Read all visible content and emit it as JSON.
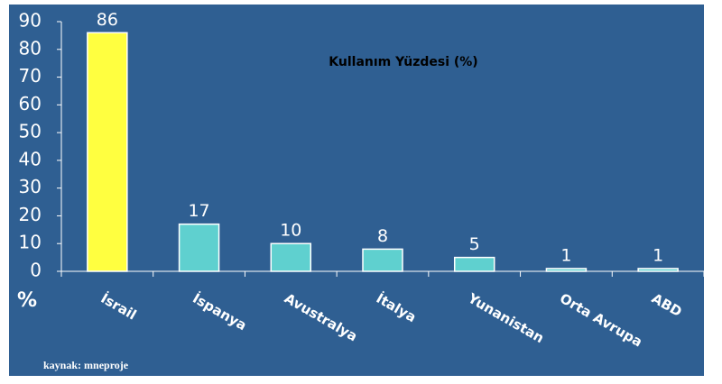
{
  "chart_data": {
    "type": "bar",
    "title": "Kullanım Yüzdesi (%)",
    "y_label": "%",
    "source": "kaynak: mneproje",
    "categories": [
      "İsrail",
      "İspanya",
      "Avustralya",
      "İtalya",
      "Yunanistan",
      "Orta Avrupa",
      "ABD"
    ],
    "values": [
      86,
      17,
      10,
      8,
      5,
      1,
      1
    ],
    "colors": [
      "#ffff40",
      "#5fd0cf",
      "#5fd0cf",
      "#5fd0cf",
      "#5fd0cf",
      "#5fd0cf",
      "#5fd0cf"
    ],
    "ylim": [
      0,
      90
    ],
    "yticks": [
      0,
      10,
      20,
      30,
      40,
      50,
      60,
      70,
      80,
      90
    ]
  }
}
